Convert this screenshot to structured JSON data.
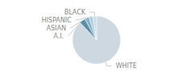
{
  "chart_data": {
    "type": "pie",
    "categories": [
      "WHITE",
      "A.I.",
      "ASIAN",
      "HISPANIC",
      "BLACK"
    ],
    "values": [
      88,
      4,
      3,
      2.5,
      2.5
    ],
    "colors": [
      "#cdd8e0",
      "#5b8fa8",
      "#8ab4c8",
      "#b0cdd8",
      "#c8dde6"
    ]
  }
}
